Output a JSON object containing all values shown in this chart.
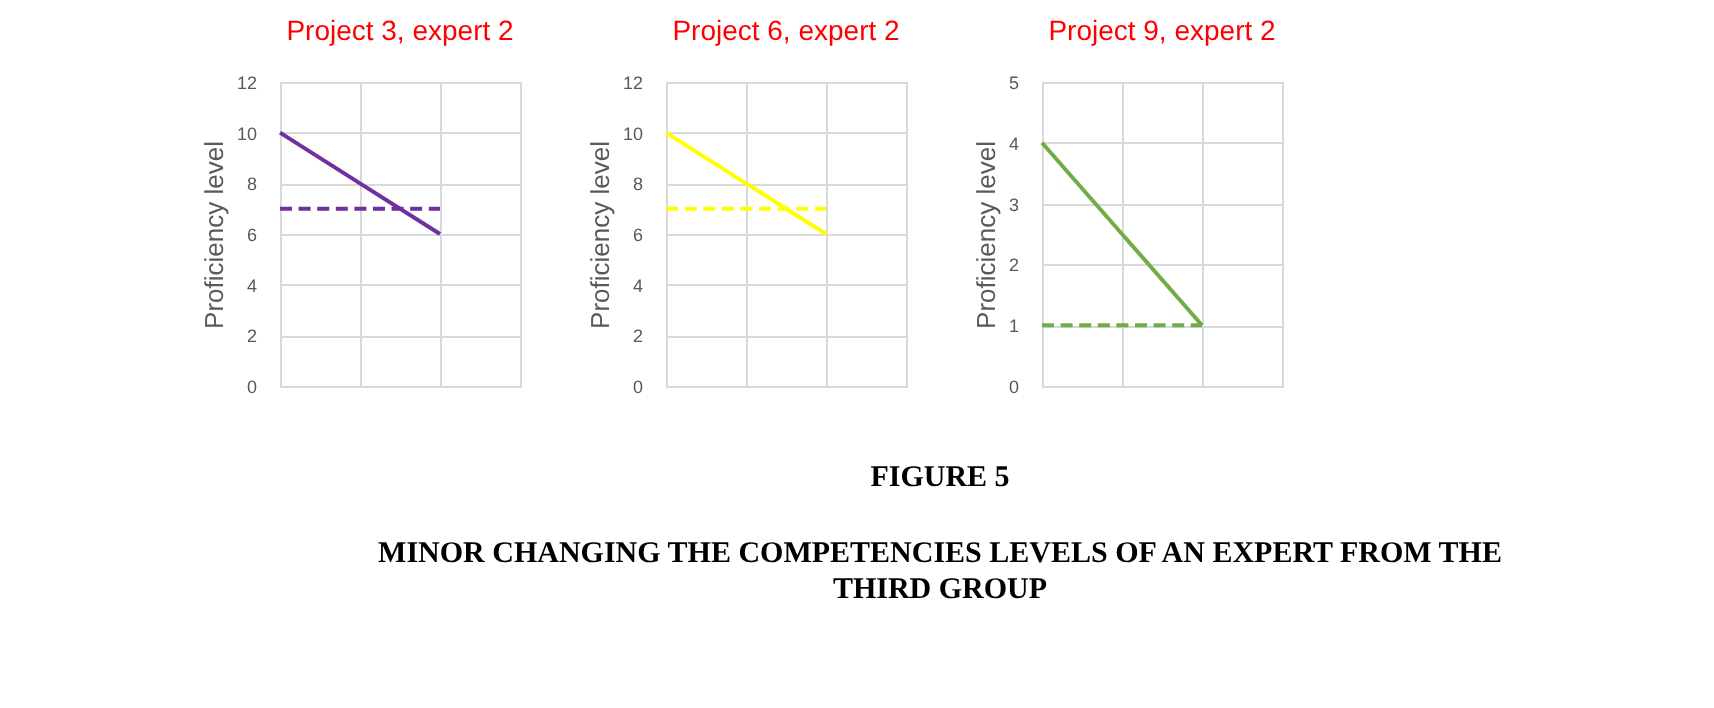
{
  "chart_data": [
    {
      "type": "line",
      "title": "Project 3, expert 2",
      "ylabel": "Proficiency level",
      "categories": [
        null,
        null,
        null,
        null
      ],
      "ylim": [
        0,
        12
      ],
      "yticks": [
        0,
        2,
        4,
        6,
        8,
        10,
        12
      ],
      "grid": true,
      "tick_labels": "y",
      "series": [
        {
          "color": "#7030a0",
          "line_style": "solid",
          "values": [
            10,
            8,
            6,
            null
          ]
        },
        {
          "color": "#7030a0",
          "line_style": "dashed",
          "values": [
            7,
            7,
            7,
            null
          ]
        }
      ]
    },
    {
      "type": "line",
      "title": "Project 6, expert 2",
      "ylabel": "Proficiency level",
      "categories": [
        null,
        null,
        null,
        null
      ],
      "ylim": [
        0,
        12
      ],
      "yticks": [
        0,
        2,
        4,
        6,
        8,
        10,
        12
      ],
      "grid": true,
      "tick_labels": "y",
      "series": [
        {
          "color": "#ffff00",
          "line_style": "solid",
          "values": [
            10,
            8,
            6,
            null
          ]
        },
        {
          "color": "#ffff00",
          "line_style": "dashed",
          "values": [
            7,
            7,
            7,
            null
          ]
        }
      ]
    },
    {
      "type": "line",
      "title": "Project 9, expert 2",
      "ylabel": "Proficiency level",
      "categories": [
        null,
        null,
        null,
        null
      ],
      "ylim": [
        0,
        5
      ],
      "yticks": [
        0,
        1,
        2,
        3,
        4,
        5
      ],
      "grid": true,
      "tick_labels": "y",
      "series": [
        {
          "color": "#70ad47",
          "line_style": "solid",
          "values": [
            4,
            2.5,
            1,
            null
          ]
        },
        {
          "color": "#70ad47",
          "line_style": "dashed",
          "values": [
            1,
            1,
            1,
            null
          ]
        }
      ],
      "annotations": [
        "FIGURE 5",
        "MINOR CHANGING THE COMPETENCIES LEVELS OF AN EXPERT FROM THE THIRD GROUP"
      ]
    }
  ]
}
